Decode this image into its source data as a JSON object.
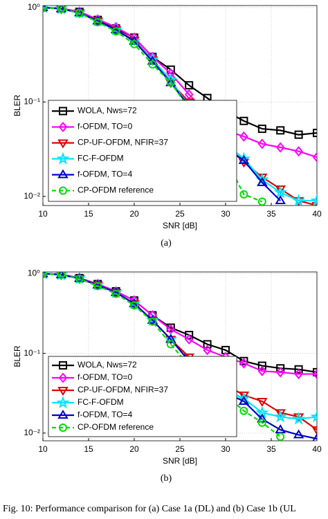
{
  "chart_data": [
    {
      "type": "line",
      "panel": "(a)",
      "xlabel": "SNR [dB]",
      "ylabel": "BLER",
      "log_y": true,
      "grid": true,
      "legend": "lower left",
      "x": [
        10,
        12,
        14,
        16,
        18,
        20,
        22,
        24,
        26,
        28,
        30,
        32,
        34,
        36,
        38,
        40
      ],
      "xlim": [
        10,
        40
      ],
      "xticks": [
        10,
        15,
        20,
        25,
        30,
        35,
        40
      ],
      "ylim": [
        0.008,
        1.05
      ],
      "yticks": [
        {
          "value": 0.01,
          "label": "10⁻²"
        },
        {
          "value": 0.1,
          "label": "10⁻¹"
        },
        {
          "value": 1,
          "label": "10⁰"
        }
      ],
      "series": [
        {
          "name": "WOLA, Nws=72",
          "color": "#000000",
          "marker": "square",
          "values": [
            1.0,
            0.98,
            0.9,
            0.74,
            0.6,
            0.48,
            0.3,
            0.22,
            0.15,
            0.11,
            0.08,
            0.063,
            0.052,
            0.05,
            0.045,
            0.047
          ]
        },
        {
          "name": "f-OFDM, TO=0",
          "color": "#ff00ff",
          "marker": "diamond",
          "values": [
            1.0,
            0.98,
            0.9,
            0.75,
            0.62,
            0.48,
            0.3,
            0.2,
            0.12,
            0.075,
            0.05,
            0.043,
            0.036,
            0.033,
            0.03,
            0.026
          ]
        },
        {
          "name": "CP-UF-OFDM, NFIR=37",
          "color": "#e00000",
          "marker": "triangle-down",
          "values": [
            1.0,
            0.97,
            0.88,
            0.72,
            0.58,
            0.45,
            0.28,
            0.16,
            0.1,
            0.055,
            0.035,
            0.023,
            0.016,
            0.012,
            0.009,
            0.008
          ]
        },
        {
          "name": "FC-F-OFDM",
          "color": "#00e5ff",
          "marker": "star",
          "values": [
            1.0,
            0.97,
            0.88,
            0.72,
            0.58,
            0.44,
            0.28,
            0.17,
            0.09,
            0.052,
            0.036,
            0.025,
            0.015,
            0.011,
            0.009,
            0.009
          ]
        },
        {
          "name": "f-OFDM, TO=4",
          "color": "#0000cc",
          "marker": "triangle-up",
          "values": [
            1.0,
            0.97,
            0.88,
            0.72,
            0.58,
            0.44,
            0.27,
            0.16,
            0.09,
            0.05,
            0.033,
            0.024,
            0.014,
            0.009,
            null,
            null
          ]
        },
        {
          "name": "CP-OFDM reference",
          "color": "#00dd00",
          "marker": "circle",
          "dashed": true,
          "values": [
            1.0,
            0.97,
            0.87,
            0.7,
            0.56,
            0.41,
            0.25,
            0.16,
            0.085,
            0.048,
            0.025,
            0.0105,
            0.0088,
            null,
            null,
            null
          ]
        }
      ]
    },
    {
      "type": "line",
      "panel": "(b)",
      "xlabel": "SNR [dB]",
      "ylabel": "BLER",
      "log_y": true,
      "grid": true,
      "legend": "lower left",
      "x": [
        10,
        12,
        14,
        16,
        18,
        20,
        22,
        24,
        26,
        28,
        30,
        32,
        34,
        36,
        38,
        40
      ],
      "xlim": [
        10,
        40
      ],
      "xticks": [
        10,
        15,
        20,
        25,
        30,
        35,
        40
      ],
      "ylim": [
        0.008,
        1.05
      ],
      "yticks": [
        {
          "value": 0.01,
          "label": "10⁻²"
        },
        {
          "value": 0.1,
          "label": "10⁻¹"
        },
        {
          "value": 1,
          "label": "10⁰"
        }
      ],
      "series": [
        {
          "name": "WOLA, Nws=72",
          "color": "#000000",
          "marker": "square",
          "values": [
            1.0,
            0.98,
            0.88,
            0.74,
            0.6,
            0.46,
            0.3,
            0.21,
            0.17,
            0.13,
            0.11,
            0.08,
            0.07,
            0.065,
            0.063,
            0.058
          ]
        },
        {
          "name": "f-OFDM, TO=0",
          "color": "#ff00ff",
          "marker": "diamond",
          "values": [
            1.0,
            0.98,
            0.88,
            0.74,
            0.6,
            0.46,
            0.3,
            0.2,
            0.15,
            0.11,
            0.09,
            0.075,
            0.06,
            0.058,
            0.055,
            0.055
          ]
        },
        {
          "name": "CP-UF-OFDM, NFIR=37",
          "color": "#e00000",
          "marker": "triangle-down",
          "values": [
            1.0,
            0.97,
            0.87,
            0.72,
            0.58,
            0.42,
            0.26,
            0.15,
            0.09,
            0.06,
            0.04,
            0.03,
            0.025,
            0.018,
            0.016,
            0.011
          ]
        },
        {
          "name": "FC-F-OFDM",
          "color": "#00e5ff",
          "marker": "star",
          "values": [
            1.0,
            0.97,
            0.87,
            0.72,
            0.58,
            0.42,
            0.26,
            0.15,
            0.08,
            0.05,
            0.035,
            0.027,
            0.018,
            0.016,
            0.015,
            0.016
          ]
        },
        {
          "name": "f-OFDM, TO=4",
          "color": "#0000cc",
          "marker": "triangle-up",
          "values": [
            1.0,
            0.97,
            0.87,
            0.72,
            0.58,
            0.42,
            0.26,
            0.15,
            0.08,
            0.048,
            0.032,
            0.025,
            0.015,
            0.011,
            0.0095,
            0.0085
          ]
        },
        {
          "name": "CP-OFDM reference",
          "color": "#00dd00",
          "marker": "circle",
          "dashed": true,
          "values": [
            1.0,
            0.97,
            0.86,
            0.7,
            0.56,
            0.4,
            0.25,
            0.13,
            0.07,
            0.045,
            0.03,
            0.019,
            0.0135,
            0.009,
            null,
            null
          ]
        }
      ]
    }
  ],
  "caption": "Fig. 10: Performance comparison for (a) Case 1a (DL) and (b) Case 1b (UL"
}
